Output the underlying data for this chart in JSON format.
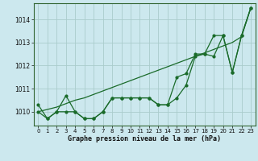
{
  "xlabel": "Graphe pression niveau de la mer (hPa)",
  "background_color": "#cce8ee",
  "grid_color": "#aacccc",
  "line_color": "#1a6b2a",
  "xlim": [
    -0.5,
    23.5
  ],
  "ylim": [
    1009.4,
    1014.7
  ],
  "yticks": [
    1010,
    1011,
    1012,
    1013,
    1014
  ],
  "xticks": [
    0,
    1,
    2,
    3,
    4,
    5,
    6,
    7,
    8,
    9,
    10,
    11,
    12,
    13,
    14,
    15,
    16,
    17,
    18,
    19,
    20,
    21,
    22,
    23
  ],
  "line_diag": [
    1010.0,
    1010.1,
    1010.2,
    1010.35,
    1010.5,
    1010.6,
    1010.75,
    1010.9,
    1011.05,
    1011.2,
    1011.35,
    1011.5,
    1011.65,
    1011.8,
    1011.95,
    1012.1,
    1012.25,
    1012.4,
    1012.55,
    1012.7,
    1012.85,
    1013.0,
    1013.25,
    1014.5
  ],
  "line_a": [
    1010.3,
    1009.7,
    1010.0,
    1010.7,
    1010.0,
    1009.7,
    1009.7,
    1010.0,
    1010.6,
    1010.6,
    1010.6,
    1010.6,
    1010.6,
    1010.3,
    1010.3,
    1011.5,
    1011.65,
    1012.5,
    1012.5,
    1013.3,
    1013.3,
    1011.7,
    1013.3,
    1014.5
  ],
  "line_b": [
    1010.0,
    1009.7,
    1010.0,
    1010.0,
    1010.0,
    1009.7,
    1009.7,
    1010.0,
    1010.6,
    1010.6,
    1010.6,
    1010.6,
    1010.6,
    1010.3,
    1010.3,
    1010.6,
    1011.15,
    1012.4,
    1012.5,
    1012.4,
    1013.3,
    1011.7,
    1013.3,
    1014.5
  ]
}
